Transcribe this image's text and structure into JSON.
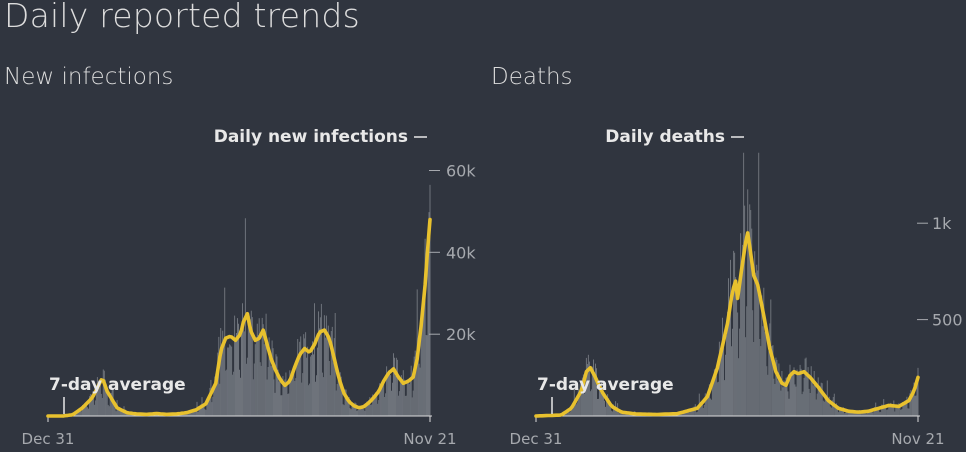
{
  "page": {
    "title": "Daily reported trends"
  },
  "chart_data": [
    {
      "type": "bar",
      "title": "New infections",
      "bar_label": "Daily new infections",
      "line_label": "7-day average",
      "x_start": "Dec 31",
      "x_end": "Nov 21",
      "ylim": [
        0,
        65000
      ],
      "yticks": [
        {
          "value": 20000,
          "label": "20k"
        },
        {
          "value": 40000,
          "label": "40k"
        },
        {
          "value": 60000,
          "label": "60k"
        }
      ],
      "avg_points": [
        [
          0,
          0
        ],
        [
          15,
          0
        ],
        [
          25,
          300
        ],
        [
          35,
          2000
        ],
        [
          45,
          4500
        ],
        [
          55,
          9300
        ],
        [
          60,
          6000
        ],
        [
          70,
          2000
        ],
        [
          80,
          800
        ],
        [
          90,
          500
        ],
        [
          100,
          400
        ],
        [
          110,
          600
        ],
        [
          120,
          400
        ],
        [
          130,
          500
        ],
        [
          140,
          800
        ],
        [
          150,
          1500
        ],
        [
          160,
          3000
        ],
        [
          170,
          8000
        ],
        [
          175,
          16000
        ],
        [
          180,
          19000
        ],
        [
          185,
          19500
        ],
        [
          190,
          18500
        ],
        [
          195,
          20000
        ],
        [
          198,
          23000
        ],
        [
          202,
          25000
        ],
        [
          205,
          21000
        ],
        [
          210,
          18500
        ],
        [
          214,
          19000
        ],
        [
          218,
          21000
        ],
        [
          222,
          17500
        ],
        [
          226,
          14000
        ],
        [
          230,
          11500
        ],
        [
          235,
          9000
        ],
        [
          240,
          7500
        ],
        [
          245,
          8500
        ],
        [
          250,
          12000
        ],
        [
          255,
          15000
        ],
        [
          260,
          16500
        ],
        [
          265,
          15500
        ],
        [
          270,
          17500
        ],
        [
          275,
          20500
        ],
        [
          280,
          21000
        ],
        [
          285,
          19000
        ],
        [
          290,
          14000
        ],
        [
          295,
          9000
        ],
        [
          300,
          5500
        ],
        [
          305,
          3500
        ],
        [
          310,
          2500
        ],
        [
          315,
          2000
        ],
        [
          320,
          2300
        ],
        [
          325,
          3200
        ],
        [
          330,
          4500
        ],
        [
          335,
          6000
        ],
        [
          340,
          8500
        ],
        [
          345,
          10500
        ],
        [
          350,
          11500
        ],
        [
          355,
          9500
        ],
        [
          360,
          8000
        ],
        [
          365,
          8500
        ],
        [
          370,
          9500
        ],
        [
          374,
          14000
        ],
        [
          378,
          22000
        ],
        [
          382,
          32000
        ],
        [
          385,
          42000
        ],
        [
          387,
          48000
        ]
      ],
      "avg_max_index": 387,
      "color_avg": "#e8c12e",
      "color_bars": "#6e737b"
    },
    {
      "type": "bar",
      "title": "Deaths",
      "bar_label": "Daily deaths",
      "line_label": "7-day average",
      "x_start": "Dec 31",
      "x_end": "Nov 21",
      "ylim": [
        0,
        1380
      ],
      "yticks": [
        {
          "value": 500,
          "label": "500"
        },
        {
          "value": 1000,
          "label": "1k"
        }
      ],
      "avg_points": [
        [
          0,
          0
        ],
        [
          25,
          5
        ],
        [
          35,
          40
        ],
        [
          45,
          130
        ],
        [
          50,
          230
        ],
        [
          54,
          250
        ],
        [
          58,
          210
        ],
        [
          65,
          130
        ],
        [
          75,
          50
        ],
        [
          85,
          20
        ],
        [
          100,
          10
        ],
        [
          120,
          8
        ],
        [
          140,
          12
        ],
        [
          160,
          40
        ],
        [
          170,
          100
        ],
        [
          180,
          250
        ],
        [
          190,
          480
        ],
        [
          195,
          650
        ],
        [
          198,
          700
        ],
        [
          200,
          610
        ],
        [
          204,
          760
        ],
        [
          208,
          900
        ],
        [
          210,
          950
        ],
        [
          212,
          880
        ],
        [
          216,
          730
        ],
        [
          220,
          680
        ],
        [
          226,
          520
        ],
        [
          232,
          350
        ],
        [
          238,
          230
        ],
        [
          244,
          170
        ],
        [
          248,
          160
        ],
        [
          252,
          210
        ],
        [
          256,
          230
        ],
        [
          260,
          220
        ],
        [
          266,
          230
        ],
        [
          272,
          200
        ],
        [
          280,
          150
        ],
        [
          290,
          80
        ],
        [
          300,
          40
        ],
        [
          310,
          25
        ],
        [
          320,
          20
        ],
        [
          330,
          25
        ],
        [
          340,
          40
        ],
        [
          350,
          55
        ],
        [
          360,
          50
        ],
        [
          370,
          80
        ],
        [
          375,
          130
        ],
        [
          379,
          200
        ]
      ],
      "avg_max_index": 379,
      "color_avg": "#e8c12e",
      "color_bars": "#6e737b"
    }
  ]
}
